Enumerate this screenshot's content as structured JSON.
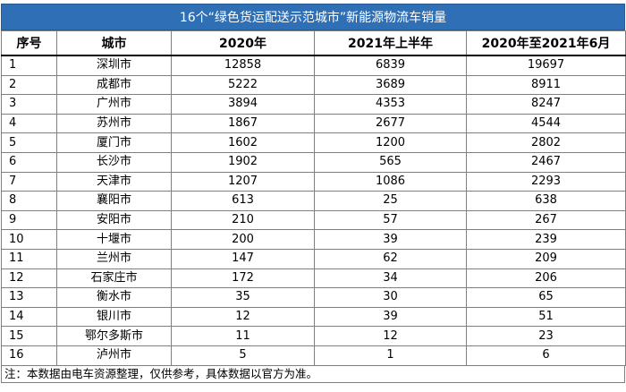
{
  "title": "16个“绿色货运配送示范城市”新能源物流车销量",
  "table": {
    "header": [
      "序号",
      "城市",
      "2020年",
      "2021年上半年",
      "2020年至2021年6月"
    ],
    "rows": [
      [
        1,
        "深圳市",
        12858,
        6839,
        19697
      ],
      [
        2,
        "成都市",
        5222,
        3689,
        8911
      ],
      [
        3,
        "广州市",
        3894,
        4353,
        8247
      ],
      [
        4,
        "苏州市",
        1867,
        2677,
        4544
      ],
      [
        5,
        "厦门市",
        1602,
        1200,
        2802
      ],
      [
        6,
        "长沙市",
        1902,
        565,
        2467
      ],
      [
        7,
        "天津市",
        1207,
        1086,
        2293
      ],
      [
        8,
        "襄阳市",
        613,
        25,
        638
      ],
      [
        9,
        "安阳市",
        210,
        57,
        267
      ],
      [
        10,
        "十堰市",
        200,
        39,
        239
      ],
      [
        11,
        "兰州市",
        147,
        62,
        209
      ],
      [
        12,
        "石家庄市",
        172,
        34,
        206
      ],
      [
        13,
        "衡水市",
        35,
        30,
        65
      ],
      [
        14,
        "银川市",
        12,
        39,
        51
      ],
      [
        15,
        "鄂尔多斯市",
        11,
        12,
        23
      ],
      [
        16,
        "泸州市",
        5,
        1,
        6
      ]
    ]
  },
  "footnote": "注：本数据由电车资源整理，仅供参考，具体数据以官方为准。"
}
